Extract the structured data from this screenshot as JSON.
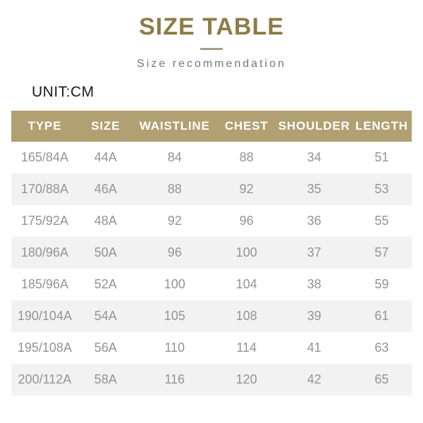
{
  "page": {
    "title": "SIZE TABLE",
    "subtitle": "Size recommendation",
    "unit_label": "UNIT:CM"
  },
  "colors": {
    "title_gold": "#8c7c46",
    "divider": "#a59d86",
    "subtitle_gray": "#777777",
    "header_bg_tan": "#b1a072",
    "header_text": "#ffffff",
    "row_alt_bg": "#f2f2f2",
    "cell_text_gray": "#949494",
    "unit_text": "#1b1b1b",
    "page_bg": "#ffffff"
  },
  "chart_data": {
    "type": "table",
    "title": "SIZE TABLE",
    "subtitle": "Size recommendation",
    "unit": "CM",
    "columns": [
      "TYPE",
      "SIZE",
      "WAISTLINE",
      "CHEST",
      "SHOULDER",
      "LENGTH"
    ],
    "rows": [
      [
        "165/84A",
        "44A",
        "84",
        "88",
        "34",
        "51"
      ],
      [
        "170/88A",
        "46A",
        "88",
        "92",
        "35",
        "53"
      ],
      [
        "175/92A",
        "48A",
        "92",
        "96",
        "36",
        "55"
      ],
      [
        "180/96A",
        "50A",
        "96",
        "100",
        "37",
        "57"
      ],
      [
        "185/96A",
        "52A",
        "100",
        "104",
        "38",
        "59"
      ],
      [
        "190/104A",
        "54A",
        "105",
        "108",
        "39",
        "61"
      ],
      [
        "195/108A",
        "56A",
        "110",
        "114",
        "41",
        "63"
      ],
      [
        "200/112A",
        "58A",
        "116",
        "120",
        "42",
        "65"
      ]
    ],
    "layout": {
      "row_striping": "alternating white / light gray",
      "header_style": "tan background, white bold text",
      "alignment": "all columns centered"
    }
  }
}
